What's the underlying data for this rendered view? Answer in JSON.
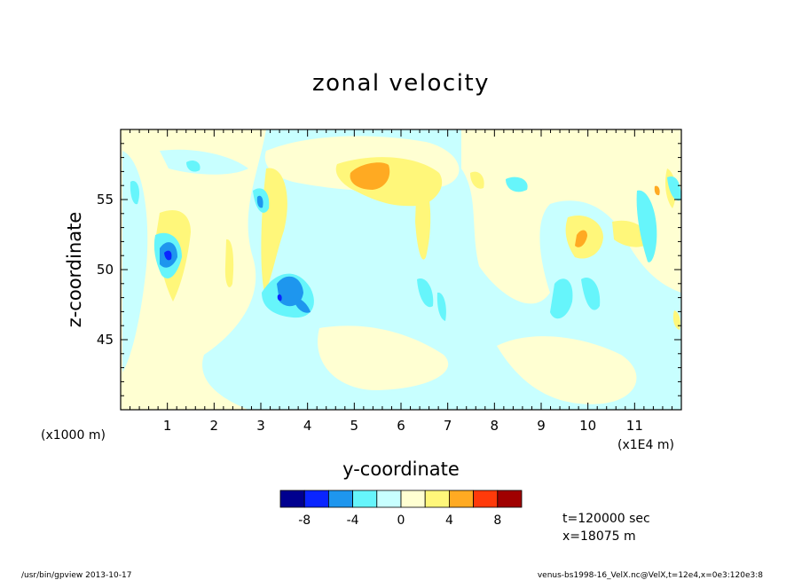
{
  "chart_data": {
    "type": "heatmap",
    "title": "zonal velocity",
    "xlabel": "y-coordinate",
    "ylabel": "z-coordinate",
    "x_units_note": "(x1000 m)",
    "x_scale_note": "(x1E4 m)",
    "xlim": [
      0,
      12
    ],
    "ylim": [
      40,
      60
    ],
    "x_ticks": [
      "1",
      "2",
      "3",
      "4",
      "5",
      "6",
      "7",
      "8",
      "9",
      "10",
      "11"
    ],
    "y_ticks": [
      "45",
      "50",
      "55"
    ],
    "color_levels": [
      {
        "min": -10,
        "max": -8,
        "color": "#00008f"
      },
      {
        "min": -8,
        "max": -6,
        "color": "#0a25ff"
      },
      {
        "min": -6,
        "max": -4,
        "color": "#1e96ee"
      },
      {
        "min": -4,
        "max": -2,
        "color": "#66f5fb"
      },
      {
        "min": -2,
        "max": 0,
        "color": "#c8ffff"
      },
      {
        "min": 0,
        "max": 2,
        "color": "#ffffd2"
      },
      {
        "min": 2,
        "max": 4,
        "color": "#fff77a"
      },
      {
        "min": 4,
        "max": 6,
        "color": "#ffaa22"
      },
      {
        "min": 6,
        "max": 8,
        "color": "#ff3a0a"
      },
      {
        "min": 8,
        "max": 10,
        "color": "#a00000"
      }
    ],
    "colorbar_tick_labels": [
      "-8",
      "-4",
      "0",
      "4",
      "8"
    ],
    "features": [
      {
        "kind": "positive",
        "level": 6,
        "y": 5.4,
        "z": 56.7
      },
      {
        "kind": "positive",
        "level": 4,
        "y": 9.8,
        "z": 52.3
      },
      {
        "kind": "positive",
        "level": 4,
        "y": 11.5,
        "z": 55.6
      },
      {
        "kind": "negative",
        "level": -6,
        "y": 1.0,
        "z": 51.4
      },
      {
        "kind": "negative",
        "level": -6,
        "y": 3.7,
        "z": 48.5
      },
      {
        "kind": "negative",
        "level": -4,
        "y": 2.9,
        "z": 54.7
      },
      {
        "kind": "negative",
        "level": -2,
        "y": 8.3,
        "z": 56.0
      },
      {
        "kind": "negative",
        "level": -2,
        "y": 9.4,
        "z": 47.3
      }
    ]
  },
  "annotations": {
    "time": "t=120000 sec",
    "position": "x=18075 m"
  },
  "footer": {
    "left": "/usr/bin/gpview  2013-10-17",
    "right": "venus-bs1998-16_VelX.nc@VelX,t=12e4,x=0e3:120e3:8"
  }
}
